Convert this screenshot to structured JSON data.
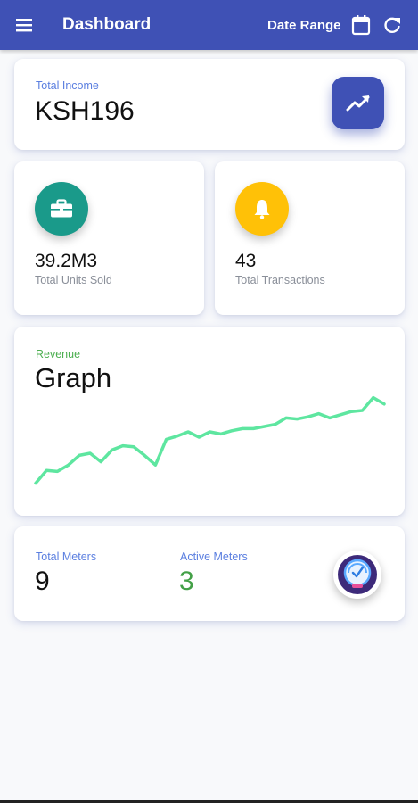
{
  "appbar": {
    "title": "Dashboard",
    "date_range_label": "Date Range"
  },
  "income": {
    "label": "Total Income",
    "value": "KSH196"
  },
  "units": {
    "value": "39.2M3",
    "label": "Total Units Sold"
  },
  "transactions": {
    "value": "43",
    "label": "Total Transactions"
  },
  "revenue": {
    "label": "Revenue",
    "title": "Graph"
  },
  "meters": {
    "total_label": "Total Meters",
    "total_value": "9",
    "active_label": "Active Meters",
    "active_value": "3"
  },
  "icons": {
    "menu": "menu-icon",
    "calendar": "calendar-icon",
    "refresh": "refresh-icon",
    "trend": "trending-up-icon",
    "briefcase": "briefcase-icon",
    "bell": "bell-icon",
    "gauge": "gauge-icon"
  },
  "colors": {
    "primary": "#3f51b5",
    "teal": "#1a9a8a",
    "amber": "#ffc107",
    "graph_line": "#5ee6a0",
    "active_green": "#43a047"
  },
  "chart_data": {
    "type": "line",
    "x": [
      0,
      1,
      2,
      3,
      4,
      5,
      6,
      7,
      8,
      9,
      10,
      11,
      12,
      13,
      14,
      15,
      16,
      17,
      18,
      19,
      20,
      21,
      22,
      23,
      24,
      25,
      26,
      27,
      28,
      29,
      30,
      31,
      32
    ],
    "series": [
      {
        "values": [
          2,
          14,
          13,
          19,
          28,
          30,
          22,
          33,
          37,
          36,
          28,
          19,
          43,
          46,
          50,
          45,
          50,
          48,
          51,
          53,
          53,
          55,
          57,
          63,
          62,
          64,
          67,
          63,
          66,
          69,
          70,
          82,
          76
        ]
      }
    ],
    "ylim": [
      0,
      90
    ],
    "grid": false,
    "legend": "none"
  }
}
